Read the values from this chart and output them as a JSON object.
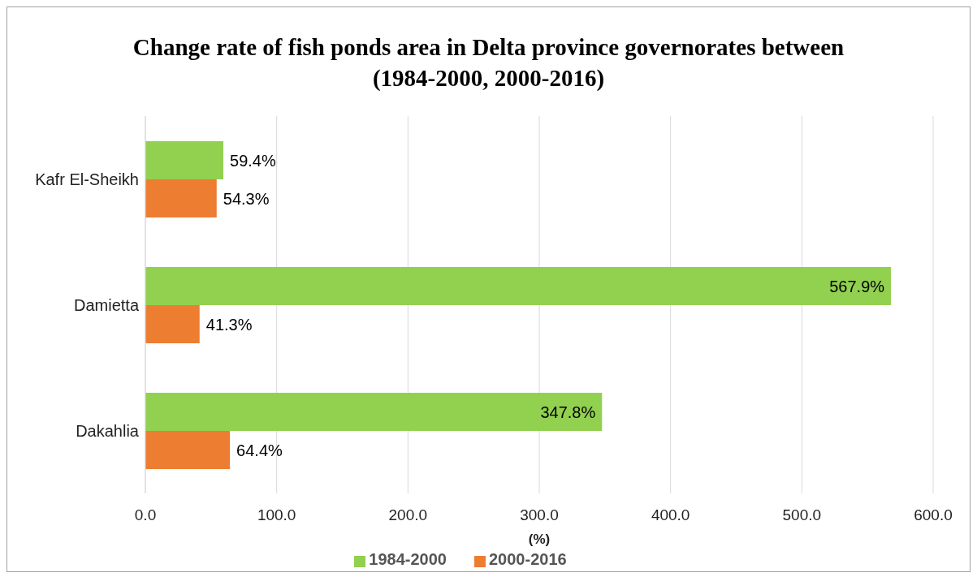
{
  "chart_data": {
    "type": "bar",
    "orientation": "horizontal",
    "title": "Change rate of fish ponds area in Delta province governorates between (1984-2000, 2000-2016)",
    "xlabel": "(%)",
    "categories": [
      "Kafr El-Sheikh",
      "Damietta",
      "Dakahlia"
    ],
    "series": [
      {
        "name": "1984-2000",
        "color": "#92d050",
        "values": [
          59.4,
          567.9,
          347.8
        ],
        "value_labels": [
          "59.4%",
          "567.9%",
          "347.8%"
        ]
      },
      {
        "name": "2000-2016",
        "color": "#ed7d31",
        "values": [
          54.3,
          41.3,
          64.4
        ],
        "value_labels": [
          "54.3%",
          "41.3%",
          "64.4%"
        ]
      }
    ],
    "xlim": [
      0,
      600
    ],
    "xticks": [
      {
        "value": 0,
        "label": "0.0"
      },
      {
        "value": 100,
        "label": "100.0"
      },
      {
        "value": 200,
        "label": "200.0"
      },
      {
        "value": 300,
        "label": "300.0"
      },
      {
        "value": 400,
        "label": "400.0"
      },
      {
        "value": 500,
        "label": "500.0"
      },
      {
        "value": 600,
        "label": "600.0"
      }
    ],
    "grid": "x",
    "legend": "bottom"
  }
}
